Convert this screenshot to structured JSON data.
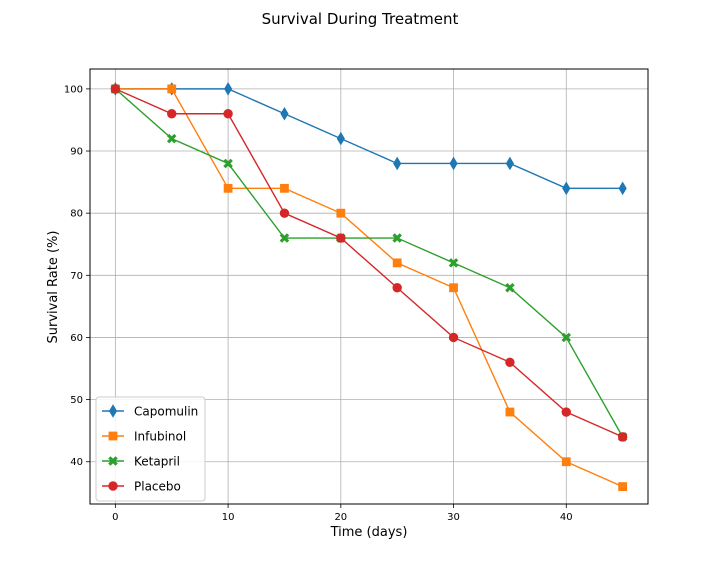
{
  "chart_data": {
    "type": "line",
    "title": "Survival During Treatment",
    "xlabel": "Time (days)",
    "ylabel": "Survival Rate (%)",
    "x": [
      0,
      5,
      10,
      15,
      20,
      25,
      30,
      35,
      40,
      45
    ],
    "xlim": [
      -2.25,
      47.25
    ],
    "ylim": [
      33.2,
      103.2
    ],
    "xticks": [
      0,
      10,
      20,
      30,
      40
    ],
    "yticks": [
      40,
      50,
      60,
      70,
      80,
      90,
      100
    ],
    "grid": true,
    "legend_position": "lower-left",
    "series": [
      {
        "name": "Capomulin",
        "color": "#1f77b4",
        "marker": "thin-diamond",
        "values": [
          100,
          100,
          100,
          96,
          92,
          88,
          88,
          88,
          84,
          84
        ]
      },
      {
        "name": "Infubinol",
        "color": "#ff7f0e",
        "marker": "square",
        "values": [
          100,
          100,
          84,
          84,
          80,
          72,
          68,
          48,
          40,
          36
        ]
      },
      {
        "name": "Ketapril",
        "color": "#2ca02c",
        "marker": "x-filled",
        "values": [
          100,
          92,
          88,
          76,
          76,
          76,
          72,
          68,
          60,
          44
        ]
      },
      {
        "name": "Placebo",
        "color": "#d62728",
        "marker": "circle",
        "values": [
          100,
          96,
          96,
          80,
          76,
          68,
          60,
          56,
          48,
          44
        ]
      }
    ]
  }
}
